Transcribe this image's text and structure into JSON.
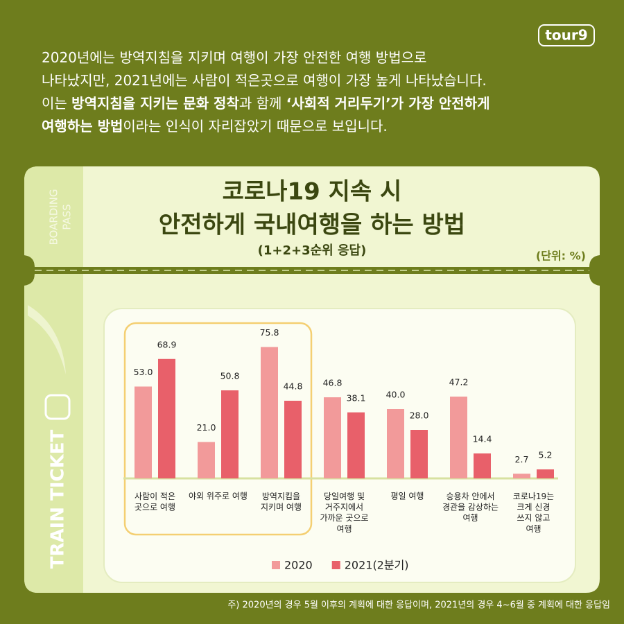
{
  "logo": "tour9",
  "intro": [
    [
      {
        "text": "2020년에는 방역지침을 지키며 여행이 가장 안전한 여행 방법으로",
        "bold": false
      }
    ],
    [
      {
        "text": "나타났지만, 2021년에는 사람이 적은곳으로 여행이 가장 높게 나타났습니다.",
        "bold": false
      }
    ],
    [
      {
        "text": "이는 ",
        "bold": false
      },
      {
        "text": "방역지침을 지키는 문화 정착",
        "bold": true
      },
      {
        "text": "과 함께 ",
        "bold": false
      },
      {
        "text": "‘사회적 거리두기’가 가장 안전하게",
        "bold": true
      }
    ],
    [
      {
        "text": "여행하는 방법",
        "bold": true
      },
      {
        "text": "이라는 인식이 자리잡았기 때문으로 보입니다.",
        "bold": false
      }
    ]
  ],
  "ticket": {
    "boarding": "BOARDING",
    "pass": "PASS",
    "train_ticket": "TRAIN TICKET"
  },
  "footnote": "주) 2020년의 경우 5월 이후의 계획에 대한 응답이며, 2021년의 경우 4~6월 중 계획에 대한 응답임",
  "chart_data": {
    "type": "bar",
    "title": [
      "코로나19 지속 시",
      "안전하게 국내여행을 하는 방법"
    ],
    "subtitle": "(1+2+3순위 응답)",
    "unit": "(단위: %)",
    "categories": [
      "사람이 적은\n곳으로 여행",
      "야외 위주로 여행",
      "방역지킴을\n지키며 여행",
      "당일여행 및\n거주지에서\n가까운 곳으로\n여행",
      "평일 여행",
      "승용차 안에서\n경관을 감상하는\n여행",
      "코로나19는\n크게 신경\n쓰지 않고\n여행"
    ],
    "series": [
      {
        "name": "2020",
        "color": "#f29a9a",
        "values": [
          53.0,
          21.0,
          75.8,
          46.8,
          40.0,
          47.2,
          2.7
        ],
        "value_labels": [
          "53.0",
          "21.0",
          "75.8",
          "46.8",
          "40.0",
          "47.2",
          "2.7"
        ]
      },
      {
        "name": "2021(2분기)",
        "color": "#e8606a",
        "values": [
          68.9,
          50.8,
          44.8,
          38.1,
          28.0,
          14.4,
          5.2
        ],
        "value_labels": [
          "68.9",
          "50.8",
          "44.8",
          "38.1",
          "28.0",
          "14.4",
          "5.2"
        ]
      }
    ],
    "ylim": [
      0,
      88
    ],
    "legend": "bottom"
  }
}
